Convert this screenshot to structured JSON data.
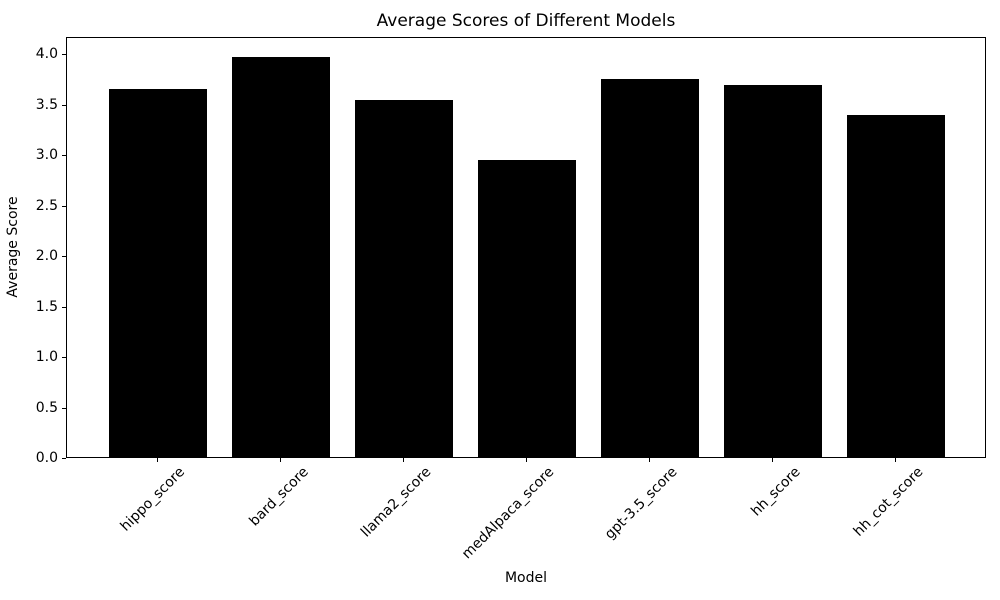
{
  "chart_data": {
    "type": "bar",
    "title": "Average Scores of Different Models",
    "xlabel": "Model",
    "ylabel": "Average Score",
    "categories": [
      "hippo_score",
      "bard_score",
      "llama2_score",
      "medAlpaca_score",
      "gpt-3.5_score",
      "hh_score",
      "hh_cot_score"
    ],
    "values": [
      3.65,
      3.96,
      3.54,
      2.94,
      3.74,
      3.68,
      3.39
    ],
    "bar_color": "#000000",
    "background_color": "#ffffff",
    "spine_color": "#000000",
    "ylim": [
      0,
      4.17
    ],
    "yticks": [
      0.0,
      0.5,
      1.0,
      1.5,
      2.0,
      2.5,
      3.0,
      3.5,
      4.0
    ],
    "ytick_format_decimals": 1,
    "xtick_rotation": 45,
    "grid": false,
    "legend_position": "none"
  }
}
